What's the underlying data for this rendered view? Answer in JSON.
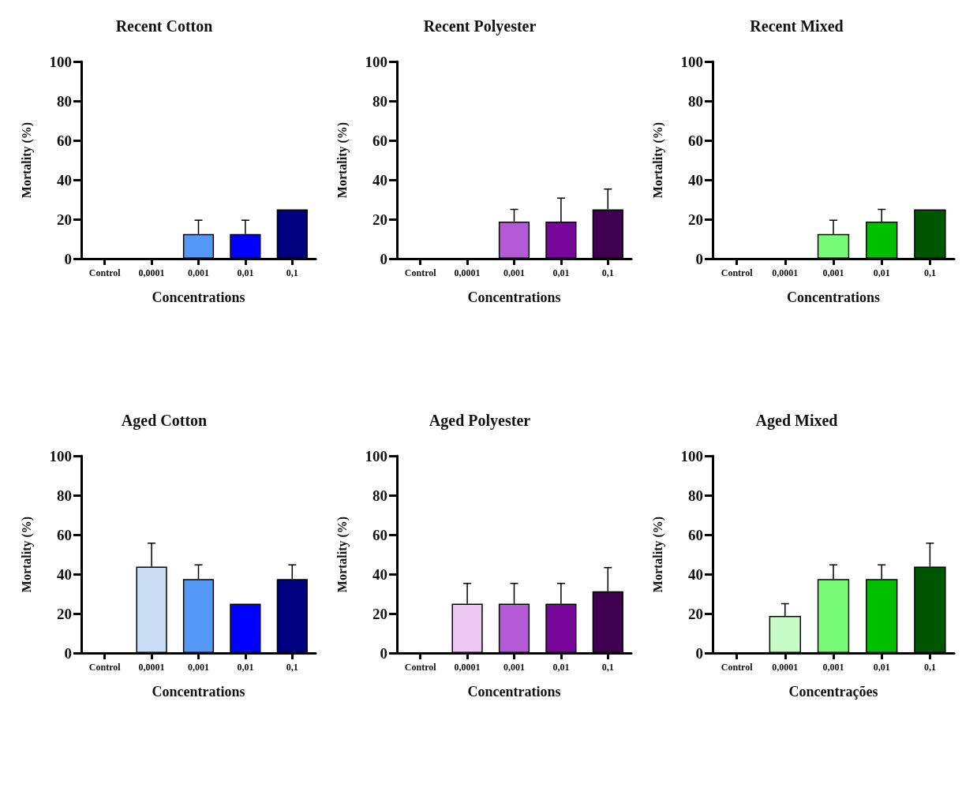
{
  "chart_data": [
    {
      "type": "bar",
      "title": "Recent Cotton",
      "xlabel": "Concentrations",
      "ylabel": "Mortality (%)",
      "categories": [
        "Control",
        "0,0001",
        "0,001",
        "0,01",
        "0,1"
      ],
      "values": [
        0,
        0,
        12.5,
        12.5,
        25
      ],
      "errors": [
        null,
        null,
        [
          12.5,
          19.5
        ],
        [
          12.5,
          19.5
        ],
        null
      ],
      "colors": [
        null,
        null,
        "#5599f7",
        "#0000ff",
        "#000080"
      ],
      "ylim": [
        0,
        100
      ],
      "yticks": [
        0,
        20,
        40,
        60,
        80,
        100
      ]
    },
    {
      "type": "bar",
      "title": "Recent Polyester",
      "xlabel": "Concentrations",
      "ylabel": "Mortality (%)",
      "categories": [
        "Control",
        "0,0001",
        "0,001",
        "0,01",
        "0,1"
      ],
      "values": [
        0,
        0,
        18.8,
        18.8,
        25
      ],
      "errors": [
        null,
        null,
        [
          18.8,
          25
        ],
        [
          18.8,
          30.7
        ],
        [
          25,
          35.3
        ]
      ],
      "colors": [
        null,
        null,
        "#b55ad6",
        "#770599",
        "#3e004f"
      ],
      "ylim": [
        0,
        100
      ],
      "yticks": [
        0,
        20,
        40,
        60,
        80,
        100
      ]
    },
    {
      "type": "bar",
      "title": "Recent Mixed",
      "xlabel": "Concentrations",
      "ylabel": "Mortality (%)",
      "categories": [
        "Control",
        "0,0001",
        "0,001",
        "0,01",
        "0,1"
      ],
      "values": [
        0,
        0,
        12.5,
        18.8,
        25
      ],
      "errors": [
        null,
        null,
        [
          12.5,
          19.5
        ],
        [
          18.8,
          25
        ],
        null
      ],
      "colors": [
        null,
        null,
        "#77fb77",
        "#00bf00",
        "#005500"
      ],
      "ylim": [
        0,
        100
      ],
      "yticks": [
        0,
        20,
        40,
        60,
        80,
        100
      ]
    },
    {
      "type": "bar",
      "title": "Aged Cotton",
      "xlabel": "Concentrations",
      "ylabel": "Mortality (%)",
      "categories": [
        "Control",
        "0,0001",
        "0,001",
        "0,01",
        "0,1"
      ],
      "values": [
        0,
        43.8,
        37.5,
        25,
        37.5
      ],
      "errors": [
        null,
        [
          43.8,
          55.7
        ],
        [
          37.5,
          44.7
        ],
        null,
        [
          37.5,
          44.7
        ]
      ],
      "colors": [
        null,
        "#c9ddf5",
        "#5599f7",
        "#0000ff",
        "#000080"
      ],
      "ylim": [
        0,
        100
      ],
      "yticks": [
        0,
        20,
        40,
        60,
        80,
        100
      ]
    },
    {
      "type": "bar",
      "title": "Aged Polyester",
      "xlabel": "Concentrations",
      "ylabel": "Mortality (%)",
      "categories": [
        "Control",
        "0,0001",
        "0,001",
        "0,01",
        "0,1"
      ],
      "values": [
        0,
        25,
        25,
        25,
        31.3
      ],
      "errors": [
        null,
        [
          25,
          35.3
        ],
        [
          25,
          35.3
        ],
        [
          25,
          35.3
        ],
        [
          31.3,
          43.3
        ]
      ],
      "colors": [
        null,
        "#f0c8f5",
        "#b55ad6",
        "#770599",
        "#3e004f"
      ],
      "ylim": [
        0,
        100
      ],
      "yticks": [
        0,
        20,
        40,
        60,
        80,
        100
      ]
    },
    {
      "type": "bar",
      "title": "Aged Mixed",
      "xlabel": "Concentrações",
      "ylabel": "Mortality (%)",
      "categories": [
        "Control",
        "0,0001",
        "0,001",
        "0,01",
        "0,1"
      ],
      "values": [
        0,
        18.8,
        37.5,
        37.5,
        43.8
      ],
      "errors": [
        null,
        [
          18.8,
          25
        ],
        [
          37.5,
          44.7
        ],
        [
          37.5,
          44.7
        ],
        [
          43.8,
          55.7
        ]
      ],
      "colors": [
        null,
        "#c6fcc6",
        "#77fb77",
        "#00bf00",
        "#005500"
      ],
      "ylim": [
        0,
        100
      ],
      "yticks": [
        0,
        20,
        40,
        60,
        80,
        100
      ]
    }
  ]
}
